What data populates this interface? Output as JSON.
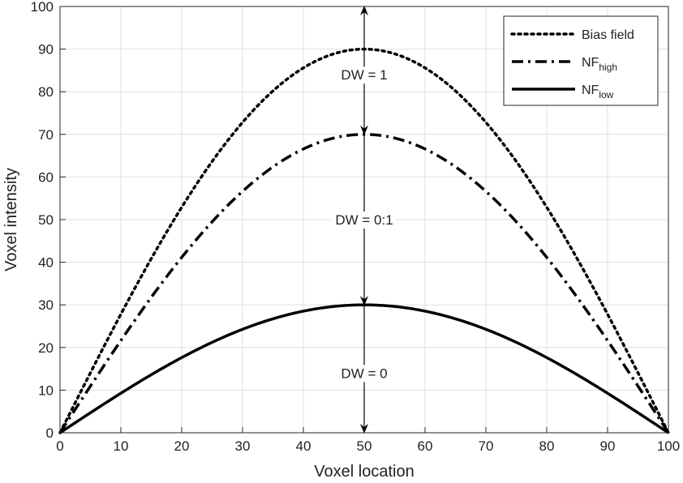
{
  "chart_data": {
    "type": "line",
    "xlabel": "Voxel location",
    "ylabel": "Voxel intensity",
    "xlim": [
      0,
      100
    ],
    "ylim": [
      0,
      100
    ],
    "xticks": [
      0,
      10,
      20,
      30,
      40,
      50,
      60,
      70,
      80,
      90,
      100
    ],
    "yticks": [
      0,
      10,
      20,
      30,
      40,
      50,
      60,
      70,
      80,
      90,
      100
    ],
    "grid": true,
    "legend_position": "top-right",
    "series": [
      {
        "name": "Bias field",
        "name_main": "Bias field",
        "name_sub": "",
        "style": "dotted",
        "color": "#000000",
        "peak": 90,
        "x": [
          0,
          10,
          20,
          30,
          40,
          50,
          60,
          70,
          80,
          90,
          100
        ],
        "y": [
          0,
          27.8,
          52.9,
          72.8,
          85.6,
          90,
          85.6,
          72.8,
          52.9,
          27.8,
          0
        ]
      },
      {
        "name": "NFhigh",
        "name_main": "NF",
        "name_sub": "high",
        "style": "dashdot",
        "color": "#000000",
        "peak": 70,
        "x": [
          0,
          10,
          20,
          30,
          40,
          50,
          60,
          70,
          80,
          90,
          100
        ],
        "y": [
          0,
          21.6,
          41.1,
          56.6,
          66.6,
          70,
          66.6,
          56.6,
          41.1,
          21.6,
          0
        ]
      },
      {
        "name": "NFlow",
        "name_main": "NF",
        "name_sub": "low",
        "style": "solid",
        "color": "#000000",
        "peak": 30,
        "x": [
          0,
          10,
          20,
          30,
          40,
          50,
          60,
          70,
          80,
          90,
          100
        ],
        "y": [
          0,
          9.3,
          17.6,
          24.3,
          28.5,
          30,
          28.5,
          24.3,
          17.6,
          9.3,
          0
        ]
      }
    ],
    "annotations": [
      {
        "text": "DW = 1",
        "x": 50,
        "y": 84
      },
      {
        "text": "DW = 0:1",
        "x": 50,
        "y": 50
      },
      {
        "text": "DW = 0",
        "x": 50,
        "y": 14
      }
    ],
    "arrows": [
      {
        "x": 50,
        "from": 90,
        "to": 100
      },
      {
        "x": 50,
        "from": 90,
        "to": 70
      },
      {
        "x": 50,
        "from": 70,
        "to": 30
      },
      {
        "x": 50,
        "from": 30,
        "to": 0
      }
    ]
  }
}
